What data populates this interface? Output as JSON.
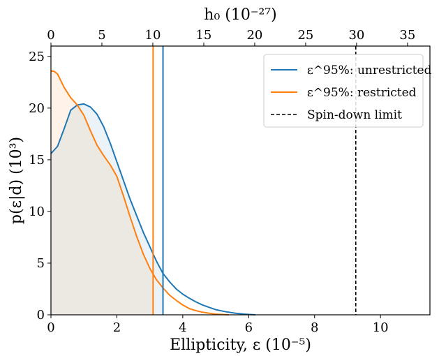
{
  "chart_data": {
    "type": "area",
    "xlabel": "Ellipticity, ε (10⁻⁵)",
    "ylabel": "p(ε|d) (10³)",
    "top_xlabel": "h₀ (10⁻²⁷)",
    "xlim": [
      0,
      11.5
    ],
    "ylim": [
      0,
      26
    ],
    "top_xlim": [
      0,
      37.2
    ],
    "x_ticks": [
      0,
      2,
      4,
      6,
      8,
      10
    ],
    "x_tick_labels": [
      "0",
      "2",
      "4",
      "6",
      "8",
      "10"
    ],
    "y_ticks": [
      0,
      5,
      10,
      15,
      20,
      25
    ],
    "y_tick_labels": [
      "0",
      "5",
      "10",
      "15",
      "20",
      "25"
    ],
    "top_ticks": [
      0,
      5,
      10,
      15,
      20,
      25,
      30,
      35
    ],
    "top_tick_labels": [
      "0",
      "5",
      "10",
      "15",
      "20",
      "25",
      "30",
      "35"
    ],
    "grid": false,
    "legend_position": "top-right",
    "series": [
      {
        "name": "ε^95%: unrestricted",
        "color": "#1f77b4",
        "fill": "#1f77b4",
        "x": [
          0,
          0.2,
          0.4,
          0.6,
          0.8,
          1.0,
          1.2,
          1.4,
          1.6,
          1.8,
          2.0,
          2.2,
          2.4,
          2.6,
          2.8,
          3.0,
          3.2,
          3.4,
          3.6,
          3.8,
          4.0,
          4.2,
          4.4,
          4.6,
          4.8,
          5.0,
          5.3,
          5.6,
          5.9,
          6.2
        ],
        "y": [
          15.6,
          16.3,
          18.0,
          19.8,
          20.3,
          20.4,
          20.1,
          19.4,
          18.2,
          16.6,
          14.8,
          13.0,
          11.2,
          9.6,
          8.0,
          6.6,
          5.2,
          4.0,
          3.2,
          2.5,
          2.0,
          1.6,
          1.25,
          0.95,
          0.72,
          0.5,
          0.3,
          0.15,
          0.06,
          0.0
        ],
        "credible_limit_95": 3.4
      },
      {
        "name": "ε^95%: restricted",
        "color": "#ff7f0e",
        "fill": "#ff7f0e",
        "x": [
          0,
          0.1,
          0.2,
          0.4,
          0.6,
          0.8,
          1.0,
          1.2,
          1.4,
          1.6,
          1.8,
          2.0,
          2.2,
          2.4,
          2.6,
          2.8,
          3.0,
          3.2,
          3.4,
          3.6,
          3.8,
          4.0,
          4.2,
          4.4,
          4.6,
          4.8,
          5.0,
          5.2,
          5.4
        ],
        "y": [
          23.6,
          23.55,
          23.3,
          22.0,
          21.0,
          20.3,
          19.3,
          17.8,
          16.4,
          15.4,
          14.5,
          13.4,
          11.5,
          9.5,
          7.6,
          5.9,
          4.5,
          3.4,
          2.6,
          1.9,
          1.4,
          0.95,
          0.6,
          0.4,
          0.25,
          0.15,
          0.07,
          0.03,
          0.0
        ],
        "credible_limit_95": 3.1
      }
    ],
    "reference_lines": [
      {
        "name": "Spin-down limit",
        "x": 9.25,
        "color": "#000000",
        "style": "dashed"
      }
    ]
  }
}
